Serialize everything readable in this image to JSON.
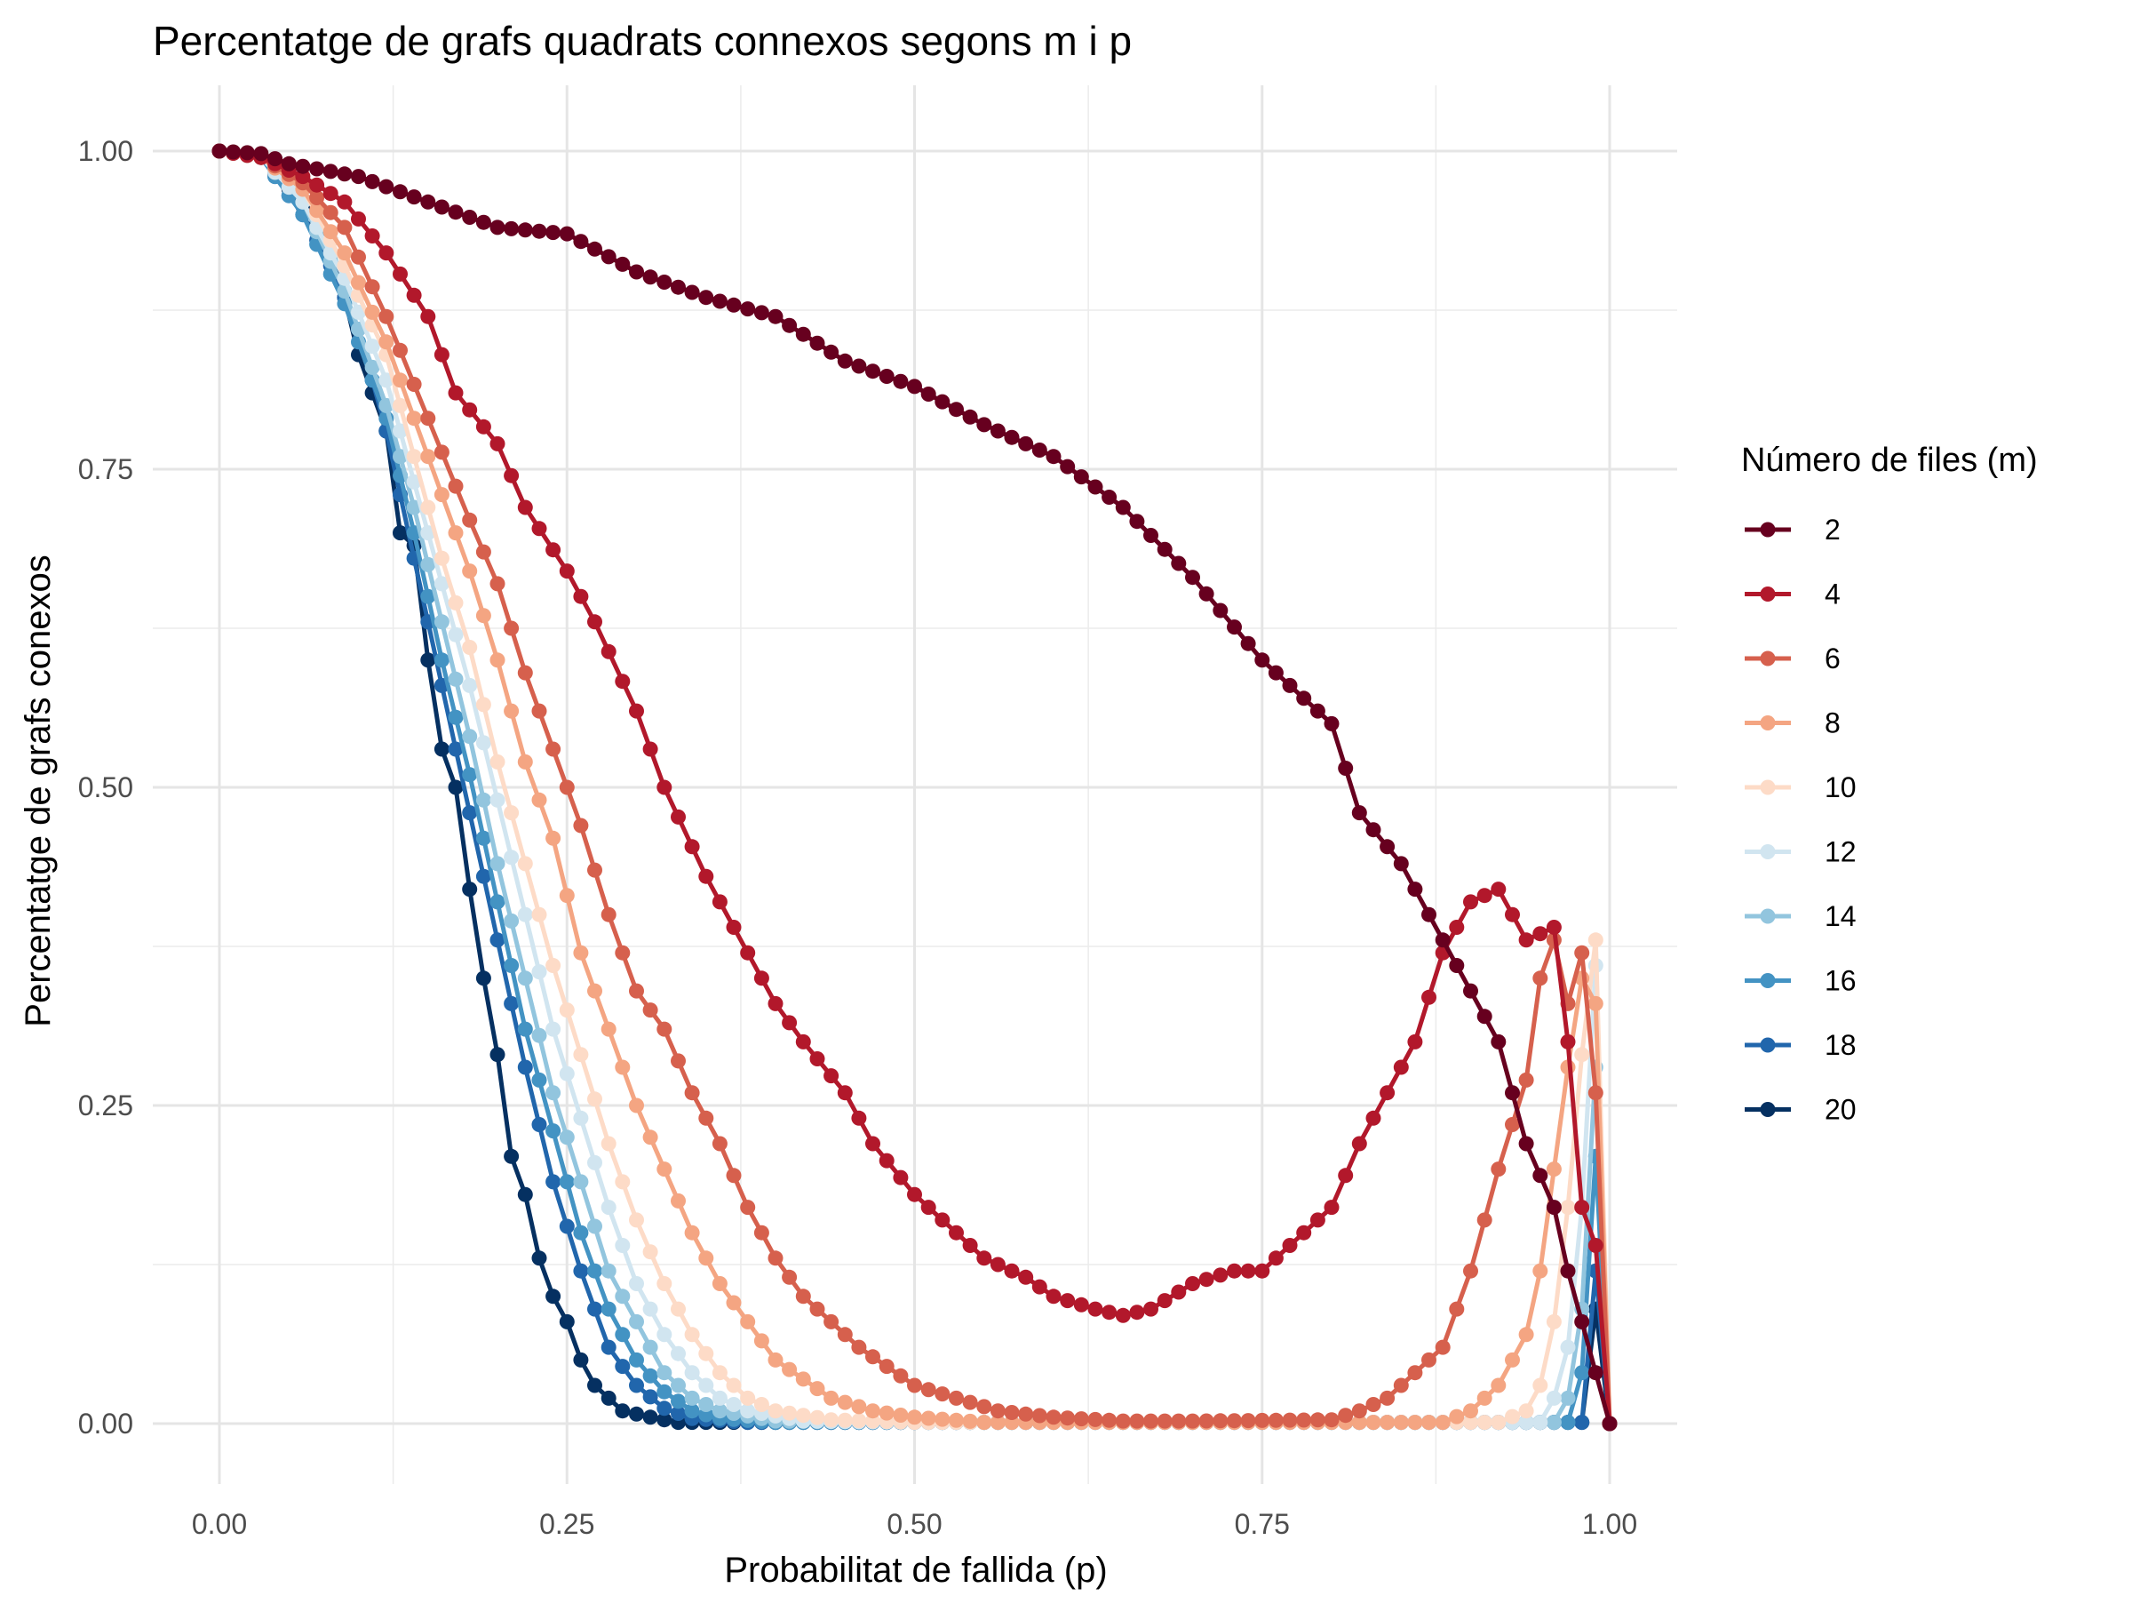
{
  "chart_data": {
    "type": "line",
    "title": "Percentatge de grafs quadrats connexos segons m i p",
    "xlabel": "Probabilitat de fallida (p)",
    "ylabel": "Percentatge de grafs conexos",
    "xlim": [
      0,
      1
    ],
    "ylim": [
      0,
      1
    ],
    "x_ticks": [
      "0.00",
      "0.25",
      "0.50",
      "0.75",
      "1.00"
    ],
    "y_ticks": [
      "0.00",
      "0.25",
      "0.50",
      "0.75",
      "1.00"
    ],
    "grid": true,
    "markers": true,
    "legend": {
      "title": "Número de files (m)",
      "position": "right"
    },
    "series": [
      {
        "name": "2",
        "color": "#67001f",
        "points": [
          [
            0,
            1
          ],
          [
            0.03,
            0.998
          ],
          [
            0.05,
            0.99
          ],
          [
            0.1,
            0.98
          ],
          [
            0.15,
            0.96
          ],
          [
            0.2,
            0.94
          ],
          [
            0.25,
            0.935
          ],
          [
            0.3,
            0.905
          ],
          [
            0.35,
            0.885
          ],
          [
            0.4,
            0.87
          ],
          [
            0.45,
            0.835
          ],
          [
            0.5,
            0.815
          ],
          [
            0.55,
            0.785
          ],
          [
            0.6,
            0.76
          ],
          [
            0.65,
            0.72
          ],
          [
            0.7,
            0.665
          ],
          [
            0.75,
            0.6
          ],
          [
            0.8,
            0.55
          ],
          [
            0.82,
            0.48
          ],
          [
            0.85,
            0.44
          ],
          [
            0.88,
            0.38
          ],
          [
            0.9,
            0.34
          ],
          [
            0.92,
            0.3
          ],
          [
            0.94,
            0.22
          ],
          [
            0.96,
            0.17
          ],
          [
            0.97,
            0.12
          ],
          [
            0.98,
            0.08
          ],
          [
            0.99,
            0.04
          ],
          [
            1,
            0
          ]
        ]
      },
      {
        "name": "4",
        "color": "#b2182b",
        "points": [
          [
            0,
            1
          ],
          [
            0.03,
            0.995
          ],
          [
            0.06,
            0.98
          ],
          [
            0.09,
            0.96
          ],
          [
            0.12,
            0.92
          ],
          [
            0.15,
            0.87
          ],
          [
            0.17,
            0.81
          ],
          [
            0.2,
            0.77
          ],
          [
            0.22,
            0.72
          ],
          [
            0.25,
            0.67
          ],
          [
            0.27,
            0.63
          ],
          [
            0.3,
            0.56
          ],
          [
            0.32,
            0.5
          ],
          [
            0.35,
            0.43
          ],
          [
            0.37,
            0.39
          ],
          [
            0.4,
            0.33
          ],
          [
            0.42,
            0.3
          ],
          [
            0.45,
            0.26
          ],
          [
            0.47,
            0.22
          ],
          [
            0.5,
            0.18
          ],
          [
            0.53,
            0.15
          ],
          [
            0.55,
            0.13
          ],
          [
            0.58,
            0.115
          ],
          [
            0.6,
            0.1
          ],
          [
            0.63,
            0.09
          ],
          [
            0.65,
            0.085
          ],
          [
            0.67,
            0.09
          ],
          [
            0.7,
            0.11
          ],
          [
            0.73,
            0.12
          ],
          [
            0.75,
            0.12
          ],
          [
            0.77,
            0.14
          ],
          [
            0.8,
            0.17
          ],
          [
            0.82,
            0.22
          ],
          [
            0.84,
            0.26
          ],
          [
            0.86,
            0.3
          ],
          [
            0.88,
            0.37
          ],
          [
            0.9,
            0.41
          ],
          [
            0.92,
            0.42
          ],
          [
            0.94,
            0.38
          ],
          [
            0.96,
            0.39
          ],
          [
            0.97,
            0.3
          ],
          [
            0.98,
            0.17
          ],
          [
            0.99,
            0.14
          ],
          [
            1,
            0
          ]
        ]
      },
      {
        "name": "6",
        "color": "#d6604d",
        "points": [
          [
            0,
            1
          ],
          [
            0.03,
            0.995
          ],
          [
            0.06,
            0.975
          ],
          [
            0.09,
            0.94
          ],
          [
            0.12,
            0.87
          ],
          [
            0.15,
            0.79
          ],
          [
            0.18,
            0.71
          ],
          [
            0.2,
            0.66
          ],
          [
            0.22,
            0.59
          ],
          [
            0.24,
            0.53
          ],
          [
            0.26,
            0.47
          ],
          [
            0.28,
            0.4
          ],
          [
            0.3,
            0.34
          ],
          [
            0.32,
            0.31
          ],
          [
            0.34,
            0.26
          ],
          [
            0.36,
            0.22
          ],
          [
            0.38,
            0.17
          ],
          [
            0.4,
            0.13
          ],
          [
            0.42,
            0.1
          ],
          [
            0.44,
            0.08
          ],
          [
            0.46,
            0.06
          ],
          [
            0.48,
            0.045
          ],
          [
            0.5,
            0.03
          ],
          [
            0.53,
            0.02
          ],
          [
            0.56,
            0.01
          ],
          [
            0.6,
            0.005
          ],
          [
            0.65,
            0.002
          ],
          [
            0.7,
            0.002
          ],
          [
            0.8,
            0.003
          ],
          [
            0.82,
            0.01
          ],
          [
            0.84,
            0.02
          ],
          [
            0.86,
            0.04
          ],
          [
            0.88,
            0.06
          ],
          [
            0.9,
            0.12
          ],
          [
            0.92,
            0.2
          ],
          [
            0.94,
            0.27
          ],
          [
            0.95,
            0.35
          ],
          [
            0.96,
            0.38
          ],
          [
            0.97,
            0.33
          ],
          [
            0.98,
            0.37
          ],
          [
            0.99,
            0.26
          ],
          [
            1,
            0
          ]
        ]
      },
      {
        "name": "8",
        "color": "#f4a582",
        "points": [
          [
            0,
            1
          ],
          [
            0.03,
            0.995
          ],
          [
            0.06,
            0.97
          ],
          [
            0.09,
            0.92
          ],
          [
            0.12,
            0.85
          ],
          [
            0.14,
            0.79
          ],
          [
            0.16,
            0.73
          ],
          [
            0.18,
            0.67
          ],
          [
            0.2,
            0.6
          ],
          [
            0.22,
            0.52
          ],
          [
            0.24,
            0.46
          ],
          [
            0.26,
            0.37
          ],
          [
            0.28,
            0.31
          ],
          [
            0.3,
            0.25
          ],
          [
            0.32,
            0.2
          ],
          [
            0.34,
            0.15
          ],
          [
            0.36,
            0.11
          ],
          [
            0.38,
            0.08
          ],
          [
            0.4,
            0.05
          ],
          [
            0.42,
            0.035
          ],
          [
            0.44,
            0.02
          ],
          [
            0.47,
            0.01
          ],
          [
            0.5,
            0.005
          ],
          [
            0.55,
            0.001
          ],
          [
            0.88,
            0.001
          ],
          [
            0.9,
            0.01
          ],
          [
            0.92,
            0.03
          ],
          [
            0.94,
            0.07
          ],
          [
            0.95,
            0.12
          ],
          [
            0.96,
            0.2
          ],
          [
            0.97,
            0.28
          ],
          [
            0.98,
            0.35
          ],
          [
            0.99,
            0.33
          ],
          [
            1,
            0
          ]
        ]
      },
      {
        "name": "10",
        "color": "#fddbc7",
        "points": [
          [
            0,
            1
          ],
          [
            0.03,
            0.995
          ],
          [
            0.06,
            0.97
          ],
          [
            0.09,
            0.91
          ],
          [
            0.12,
            0.84
          ],
          [
            0.14,
            0.76
          ],
          [
            0.16,
            0.68
          ],
          [
            0.18,
            0.61
          ],
          [
            0.2,
            0.52
          ],
          [
            0.22,
            0.44
          ],
          [
            0.24,
            0.36
          ],
          [
            0.26,
            0.29
          ],
          [
            0.28,
            0.22
          ],
          [
            0.3,
            0.16
          ],
          [
            0.32,
            0.11
          ],
          [
            0.34,
            0.07
          ],
          [
            0.36,
            0.04
          ],
          [
            0.38,
            0.02
          ],
          [
            0.4,
            0.01
          ],
          [
            0.44,
            0.003
          ],
          [
            0.5,
            0.001
          ],
          [
            0.92,
            0.001
          ],
          [
            0.94,
            0.01
          ],
          [
            0.95,
            0.03
          ],
          [
            0.96,
            0.08
          ],
          [
            0.97,
            0.17
          ],
          [
            0.98,
            0.29
          ],
          [
            0.99,
            0.38
          ],
          [
            1,
            0
          ]
        ]
      },
      {
        "name": "12",
        "color": "#d1e5f0",
        "points": [
          [
            0,
            1
          ],
          [
            0.03,
            0.995
          ],
          [
            0.06,
            0.96
          ],
          [
            0.09,
            0.9
          ],
          [
            0.12,
            0.82
          ],
          [
            0.14,
            0.74
          ],
          [
            0.16,
            0.66
          ],
          [
            0.18,
            0.58
          ],
          [
            0.2,
            0.49
          ],
          [
            0.22,
            0.4
          ],
          [
            0.24,
            0.31
          ],
          [
            0.26,
            0.24
          ],
          [
            0.28,
            0.17
          ],
          [
            0.3,
            0.11
          ],
          [
            0.32,
            0.07
          ],
          [
            0.34,
            0.04
          ],
          [
            0.36,
            0.02
          ],
          [
            0.38,
            0.01
          ],
          [
            0.42,
            0.002
          ],
          [
            0.5,
            0.001
          ],
          [
            0.95,
            0.001
          ],
          [
            0.96,
            0.02
          ],
          [
            0.97,
            0.06
          ],
          [
            0.98,
            0.17
          ],
          [
            0.99,
            0.36
          ],
          [
            1,
            0
          ]
        ]
      },
      {
        "name": "14",
        "color": "#92c5de",
        "points": [
          [
            0,
            1
          ],
          [
            0.03,
            0.995
          ],
          [
            0.06,
            0.96
          ],
          [
            0.09,
            0.89
          ],
          [
            0.12,
            0.8
          ],
          [
            0.14,
            0.72
          ],
          [
            0.16,
            0.63
          ],
          [
            0.18,
            0.54
          ],
          [
            0.2,
            0.44
          ],
          [
            0.22,
            0.35
          ],
          [
            0.24,
            0.26
          ],
          [
            0.26,
            0.19
          ],
          [
            0.28,
            0.12
          ],
          [
            0.3,
            0.08
          ],
          [
            0.32,
            0.04
          ],
          [
            0.34,
            0.02
          ],
          [
            0.36,
            0.01
          ],
          [
            0.4,
            0.002
          ],
          [
            0.5,
            0.001
          ],
          [
            0.96,
            0.001
          ],
          [
            0.97,
            0.02
          ],
          [
            0.98,
            0.09
          ],
          [
            0.99,
            0.28
          ],
          [
            1,
            0
          ]
        ]
      },
      {
        "name": "16",
        "color": "#4393c3",
        "points": [
          [
            0,
            1
          ],
          [
            0.03,
            0.995
          ],
          [
            0.06,
            0.95
          ],
          [
            0.09,
            0.88
          ],
          [
            0.12,
            0.79
          ],
          [
            0.14,
            0.7
          ],
          [
            0.16,
            0.6
          ],
          [
            0.18,
            0.51
          ],
          [
            0.2,
            0.41
          ],
          [
            0.22,
            0.31
          ],
          [
            0.24,
            0.23
          ],
          [
            0.26,
            0.15
          ],
          [
            0.28,
            0.09
          ],
          [
            0.3,
            0.05
          ],
          [
            0.32,
            0.025
          ],
          [
            0.34,
            0.01
          ],
          [
            0.36,
            0.004
          ],
          [
            0.4,
            0.001
          ],
          [
            0.97,
            0.001
          ],
          [
            0.98,
            0.04
          ],
          [
            0.99,
            0.21
          ],
          [
            1,
            0
          ]
        ]
      },
      {
        "name": "18",
        "color": "#2166ac",
        "points": [
          [
            0,
            1
          ],
          [
            0.03,
            0.995
          ],
          [
            0.06,
            0.95
          ],
          [
            0.08,
            0.91
          ],
          [
            0.1,
            0.86
          ],
          [
            0.12,
            0.78
          ],
          [
            0.14,
            0.68
          ],
          [
            0.16,
            0.58
          ],
          [
            0.18,
            0.48
          ],
          [
            0.2,
            0.38
          ],
          [
            0.22,
            0.28
          ],
          [
            0.24,
            0.19
          ],
          [
            0.26,
            0.12
          ],
          [
            0.28,
            0.06
          ],
          [
            0.3,
            0.03
          ],
          [
            0.32,
            0.012
          ],
          [
            0.34,
            0.004
          ],
          [
            0.38,
            0.001
          ],
          [
            0.98,
            0.001
          ],
          [
            0.99,
            0.12
          ],
          [
            1,
            0
          ]
        ]
      },
      {
        "name": "20",
        "color": "#053061",
        "points": [
          [
            0,
            1
          ],
          [
            0.03,
            0.995
          ],
          [
            0.05,
            0.97
          ],
          [
            0.08,
            0.93
          ],
          [
            0.1,
            0.84
          ],
          [
            0.12,
            0.78
          ],
          [
            0.13,
            0.7
          ],
          [
            0.14,
            0.69
          ],
          [
            0.15,
            0.6
          ],
          [
            0.16,
            0.53
          ],
          [
            0.17,
            0.5
          ],
          [
            0.18,
            0.42
          ],
          [
            0.19,
            0.35
          ],
          [
            0.2,
            0.29
          ],
          [
            0.21,
            0.21
          ],
          [
            0.22,
            0.18
          ],
          [
            0.23,
            0.13
          ],
          [
            0.24,
            0.1
          ],
          [
            0.25,
            0.08
          ],
          [
            0.26,
            0.05
          ],
          [
            0.27,
            0.03
          ],
          [
            0.28,
            0.02
          ],
          [
            0.29,
            0.01
          ],
          [
            0.31,
            0.005
          ],
          [
            0.33,
            0.001
          ],
          [
            0.98,
            0.001
          ],
          [
            0.99,
            0.09
          ],
          [
            1,
            0
          ]
        ]
      }
    ]
  }
}
